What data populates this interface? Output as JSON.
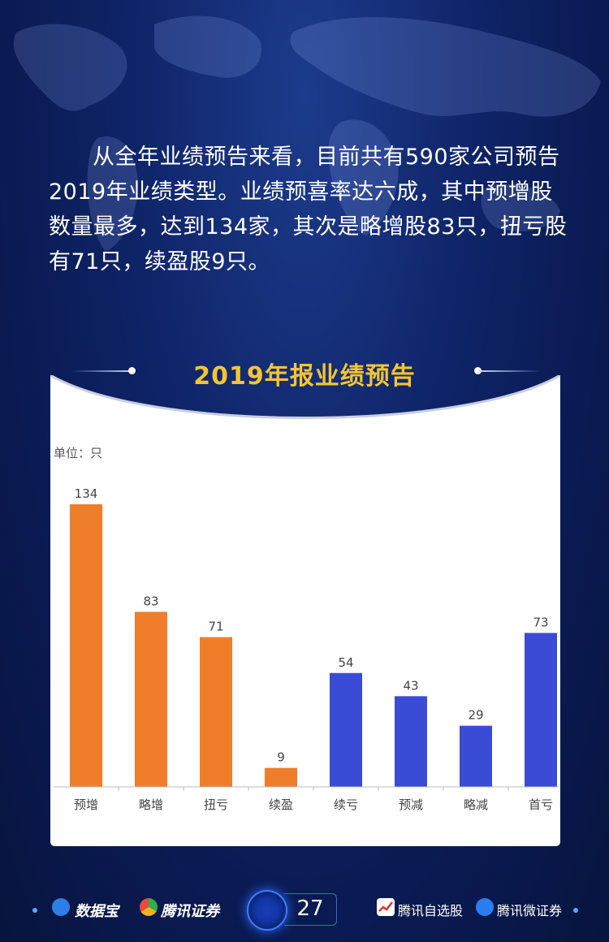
{
  "intro_text": "从全年业绩预告来看，目前共有590家公司预告2019年业绩类型。业绩预喜率达六成，其中预增股数量最多，达到134家，其次是略增股83只，扭亏股有71只，续盈股9只。",
  "chart_title": "2019年报业绩预告",
  "colors": {
    "positive_bar": "#ef7d2a",
    "negative_bar": "#3a4bd6",
    "title": "#f4c531",
    "axis": "#bdbdbd",
    "label": "#444444"
  },
  "chart_data": {
    "type": "bar",
    "title": "2019年报业绩预告",
    "unit_label": "单位：只",
    "categories": [
      "预增",
      "略增",
      "扭亏",
      "续盈",
      "续亏",
      "预减",
      "略减",
      "首亏"
    ],
    "values": [
      134,
      83,
      71,
      9,
      54,
      43,
      29,
      73
    ],
    "bar_colors": [
      "#ef7d2a",
      "#ef7d2a",
      "#ef7d2a",
      "#ef7d2a",
      "#3a4bd6",
      "#3a4bd6",
      "#3a4bd6",
      "#3a4bd6"
    ],
    "ylim": [
      0,
      134
    ],
    "grid": false,
    "data_labels": true
  },
  "footer": {
    "brand_1": "数据宝",
    "brand_2": "腾讯证券",
    "page_number": "27",
    "brand_3": "腾讯自选股",
    "brand_4": "腾讯微证券"
  }
}
